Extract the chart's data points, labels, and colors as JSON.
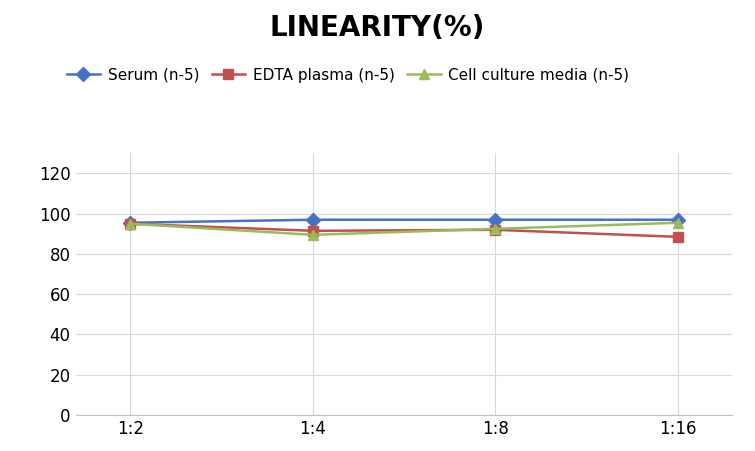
{
  "title": "LINEARITY(%)",
  "x_labels": [
    "1:2",
    "1:4",
    "1:8",
    "1:16"
  ],
  "x_positions": [
    0,
    1,
    2,
    3
  ],
  "series": [
    {
      "label": "Serum (n‑5)",
      "values": [
        95.5,
        97.0,
        97.0,
        97.0
      ],
      "color": "#4472C4",
      "marker": "D",
      "linewidth": 1.8
    },
    {
      "label": "EDTA plasma (n‑5)",
      "values": [
        95.0,
        91.5,
        92.0,
        88.5
      ],
      "color": "#C0504D",
      "marker": "s",
      "linewidth": 1.8
    },
    {
      "label": "Cell culture media (n‑5)",
      "values": [
        95.0,
        89.5,
        92.5,
        95.5
      ],
      "color": "#9BBB59",
      "marker": "^",
      "linewidth": 1.8
    }
  ],
  "ylim": [
    0,
    130
  ],
  "yticks": [
    0,
    20,
    40,
    60,
    80,
    100,
    120
  ],
  "title_fontsize": 20,
  "legend_fontsize": 11,
  "tick_fontsize": 12,
  "background_color": "#ffffff",
  "grid_color": "#d9d9d9"
}
